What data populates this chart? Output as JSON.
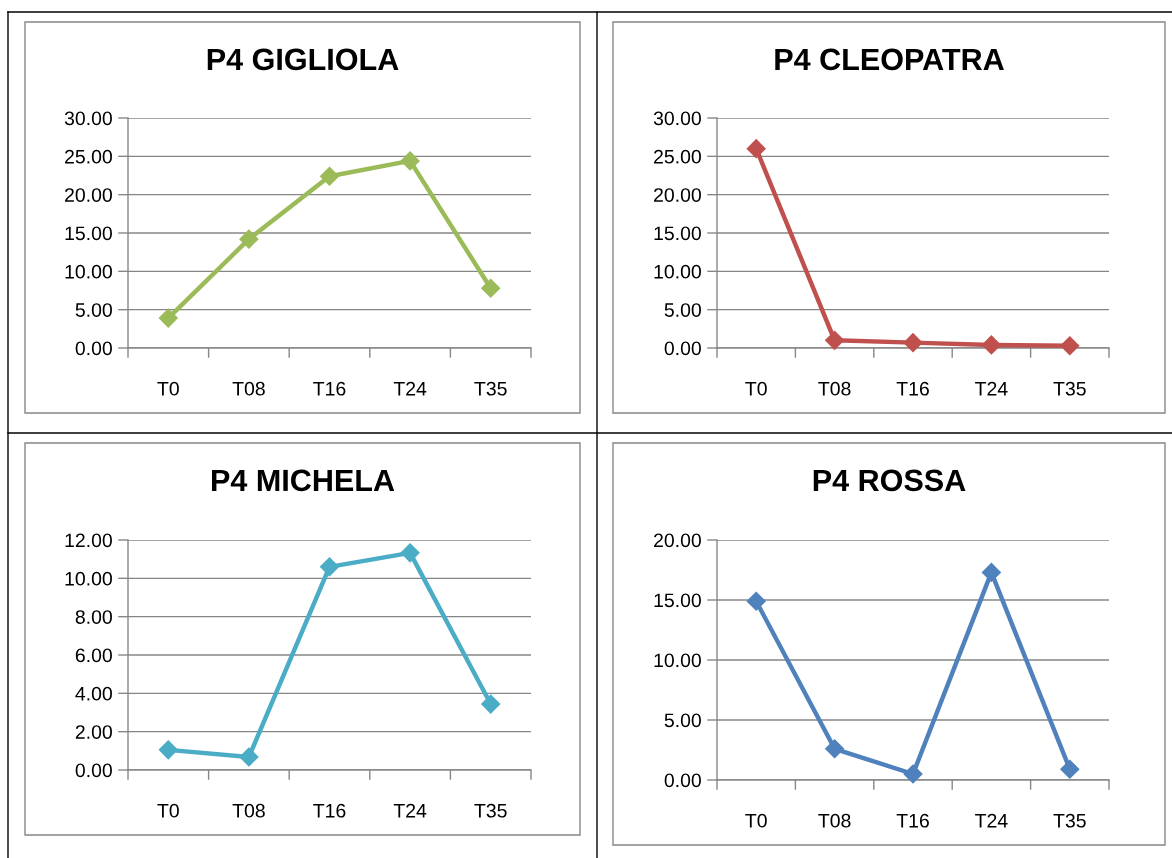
{
  "chart_data": [
    {
      "type": "line",
      "title": "P4 GIGLIOLA",
      "categories": [
        "T0",
        "T08",
        "T16",
        "T24",
        "T35"
      ],
      "series": [
        {
          "color": "#9bbb59",
          "values": [
            3.9,
            14.2,
            22.4,
            24.4,
            7.8
          ]
        }
      ],
      "ylim": [
        0,
        30
      ],
      "yticks": [
        {
          "value": 0,
          "label": "0.00"
        },
        {
          "value": 5,
          "label": "5.00"
        },
        {
          "value": 10,
          "label": "10.00"
        },
        {
          "value": 15,
          "label": "15.00"
        },
        {
          "value": 20,
          "label": "20.00"
        },
        {
          "value": 25,
          "label": "25.00"
        },
        {
          "value": 30,
          "label": "30.00"
        }
      ],
      "grid": "y",
      "marker": "diamond",
      "line_style": "solid"
    },
    {
      "type": "line",
      "title": "P4 CLEOPATRA",
      "categories": [
        "T0",
        "T08",
        "T16",
        "T24",
        "T35"
      ],
      "series": [
        {
          "color": "#c0504d",
          "values": [
            26.0,
            1.0,
            0.7,
            0.4,
            0.3
          ]
        }
      ],
      "ylim": [
        0,
        30
      ],
      "yticks": [
        {
          "value": 0,
          "label": "0.00"
        },
        {
          "value": 5,
          "label": "5.00"
        },
        {
          "value": 10,
          "label": "10.00"
        },
        {
          "value": 15,
          "label": "15.00"
        },
        {
          "value": 20,
          "label": "20.00"
        },
        {
          "value": 25,
          "label": "25.00"
        },
        {
          "value": 30,
          "label": "30.00"
        }
      ],
      "grid": "y",
      "marker": "diamond",
      "line_style": "solid"
    },
    {
      "type": "line",
      "title": "P4 MICHELA",
      "categories": [
        "T0",
        "T08",
        "T16",
        "T24",
        "T35"
      ],
      "series": [
        {
          "color": "#4bacc6",
          "values": [
            1.05,
            0.68,
            10.6,
            11.33,
            3.44
          ]
        }
      ],
      "ylim": [
        0,
        12
      ],
      "yticks": [
        {
          "value": 0,
          "label": "0.00"
        },
        {
          "value": 2,
          "label": "2.00"
        },
        {
          "value": 4,
          "label": "4.00"
        },
        {
          "value": 6,
          "label": "6.00"
        },
        {
          "value": 8,
          "label": "8.00"
        },
        {
          "value": 10,
          "label": "10.00"
        },
        {
          "value": 12,
          "label": "12.00"
        }
      ],
      "grid": "y",
      "marker": "diamond",
      "line_style": "solid"
    },
    {
      "type": "line",
      "title": "P4 ROSSA",
      "categories": [
        "T0",
        "T08",
        "T16",
        "T24",
        "T35"
      ],
      "series": [
        {
          "color": "#4f81bd",
          "values": [
            14.9,
            2.6,
            0.5,
            17.3,
            0.9
          ]
        }
      ],
      "ylim": [
        0,
        20
      ],
      "yticks": [
        {
          "value": 0,
          "label": "0.00"
        },
        {
          "value": 5,
          "label": "5.00"
        },
        {
          "value": 10,
          "label": "10.00"
        },
        {
          "value": 15,
          "label": "15.00"
        },
        {
          "value": 20,
          "label": "20.00"
        }
      ],
      "grid": "y",
      "marker": "diamond",
      "line_style": "solid"
    }
  ]
}
